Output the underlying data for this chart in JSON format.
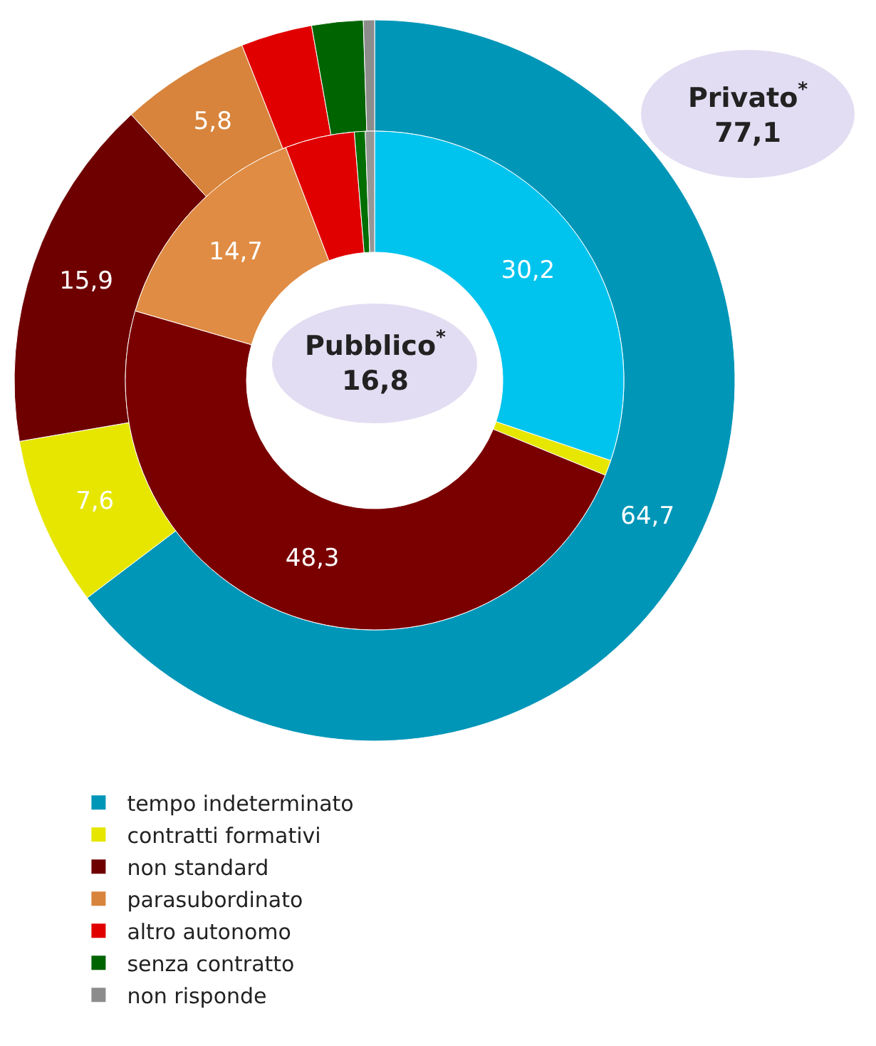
{
  "chart_data": {
    "type": "donut",
    "categories": [
      "tempo indeterminato",
      "contratti formativi",
      "non standard",
      "parasubordinato",
      "altro autonomo",
      "senza contratto",
      "non risponde"
    ],
    "series": [
      {
        "name": "Privato$^{*}$",
        "values": [
          64.7,
          7.6,
          15.9,
          5.8,
          3.2,
          2.3,
          0.5
        ],
        "value_labels": [
          "64,7",
          "7,6",
          "15,9",
          "5,8",
          null,
          null,
          null
        ],
        "colors": [
          "#0096b8",
          "#e6e600",
          "#6e0000",
          "#d8843c",
          "#e00000",
          "#006400",
          "#8c8c8c"
        ]
      },
      {
        "name": "Pubblico$^{*}$",
        "values": [
          30.2,
          1.0,
          48.3,
          14.7,
          4.5,
          0.7,
          0.6
        ],
        "value_labels": [
          "30,2",
          null,
          "48,3",
          "14,7",
          null,
          null,
          null
        ],
        "colors": [
          "#00c4ee",
          "#e6e600",
          "#7a0000",
          "#e08c44",
          "#e00000",
          "#006e00",
          "#969696"
        ]
      }
    ],
    "annotations": [
      "77,1",
      "16,8"
    ],
    "legend": "bottom left"
  }
}
